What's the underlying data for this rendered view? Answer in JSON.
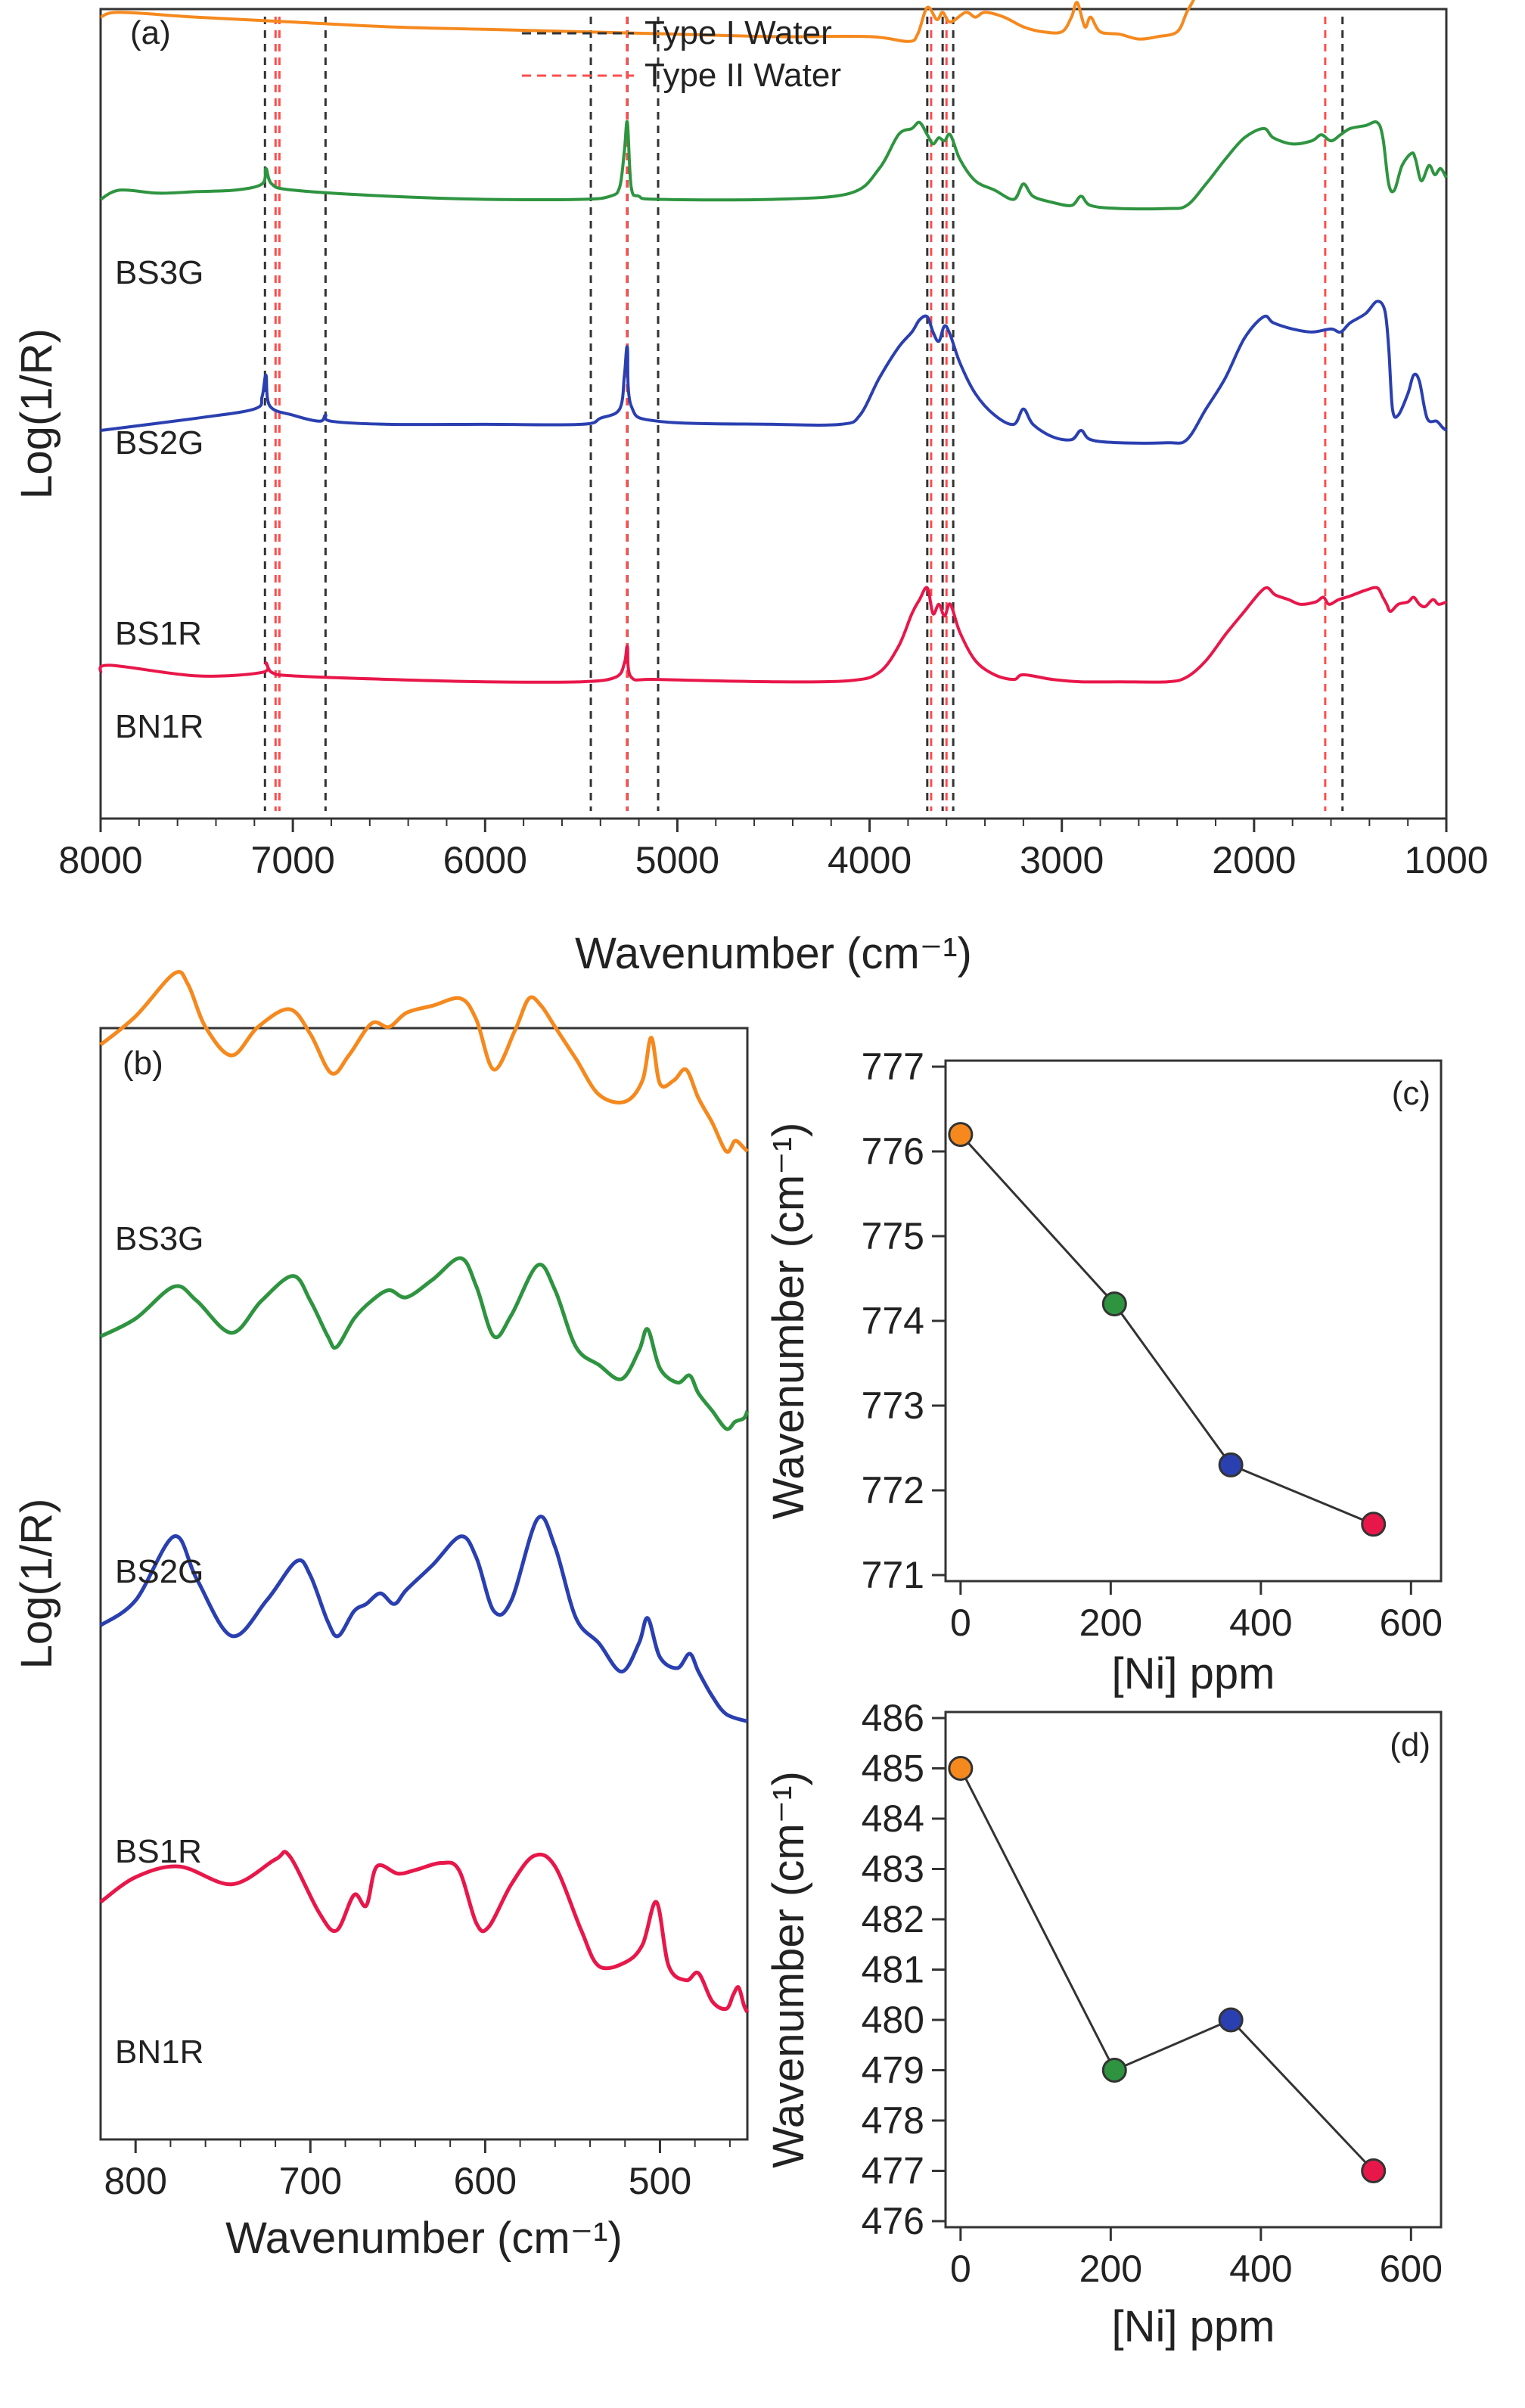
{
  "chart_data": [
    {
      "panel": "(a)",
      "type": "line",
      "xlabel": "Wavenumber (cm⁻¹)",
      "ylabel": "Log(1/R)",
      "xlim": [
        8000,
        1000
      ],
      "xticks": [
        8000,
        7000,
        6000,
        5000,
        4000,
        3000,
        2000,
        1000
      ],
      "grid": false,
      "legend": {
        "position": "top-center",
        "entries": [
          {
            "name": "Type I Water",
            "style": "dashed",
            "color": "#333333"
          },
          {
            "name": "Type II Water",
            "style": "dashed",
            "color": "#ff4d4d"
          }
        ]
      },
      "reference_lines": {
        "type_I": [
          7145,
          6830,
          5450,
          5260,
          5100,
          3700,
          3620,
          3565,
          1540
        ],
        "type_II": [
          7090,
          7070,
          5262,
          3680,
          3600,
          1630
        ]
      },
      "series": [
        {
          "name": "BS3G",
          "color": "#e8174a",
          "baseline": 0.86,
          "x": [
            8000,
            7950,
            7500,
            7160,
            7140,
            7110,
            7000,
            6500,
            6000,
            5500,
            5320,
            5275,
            5260,
            5240,
            5100,
            4500,
            4100,
            3950,
            3850,
            3780,
            3740,
            3700,
            3670,
            3640,
            3610,
            3580,
            3530,
            3450,
            3350,
            3250,
            3200,
            3050,
            2900,
            2700,
            2450,
            2350,
            2250,
            2150,
            2050,
            1970,
            1930,
            1890,
            1820,
            1760,
            1680,
            1640,
            1610,
            1560,
            1500,
            1420,
            1360,
            1330,
            1310,
            1290,
            1250,
            1200,
            1170,
            1140,
            1110,
            1070,
            1040,
            1000
          ],
          "y": [
            0.28,
            0.34,
            0.25,
            0.28,
            0.36,
            0.28,
            0.25,
            0.22,
            0.2,
            0.2,
            0.24,
            0.36,
            0.5,
            0.24,
            0.22,
            0.2,
            0.21,
            0.28,
            0.5,
            0.78,
            0.9,
            1.0,
            0.78,
            0.86,
            0.76,
            0.86,
            0.62,
            0.38,
            0.26,
            0.22,
            0.26,
            0.22,
            0.2,
            0.2,
            0.2,
            0.24,
            0.38,
            0.6,
            0.8,
            0.96,
            1.0,
            0.94,
            0.9,
            0.86,
            0.88,
            0.92,
            0.86,
            0.9,
            0.93,
            0.98,
            1.0,
            0.92,
            0.86,
            0.8,
            0.86,
            0.88,
            0.92,
            0.86,
            0.84,
            0.9,
            0.86,
            0.88
          ]
        },
        {
          "name": "BS2G",
          "color": "#2a3fb0",
          "baseline": 0.57,
          "x": [
            8000,
            7500,
            7200,
            7160,
            7140,
            7120,
            7000,
            6860,
            6830,
            6800,
            6500,
            6000,
            5500,
            5400,
            5300,
            5275,
            5260,
            5240,
            5100,
            4500,
            4150,
            4050,
            3950,
            3850,
            3780,
            3740,
            3700,
            3670,
            3640,
            3610,
            3580,
            3530,
            3450,
            3350,
            3250,
            3200,
            3150,
            3050,
            2950,
            2900,
            2850,
            2700,
            2450,
            2350,
            2250,
            2150,
            2050,
            1950,
            1900,
            1800,
            1700,
            1600,
            1550,
            1500,
            1420,
            1360,
            1320,
            1300,
            1280,
            1250,
            1200,
            1170,
            1140,
            1100,
            1050,
            1020,
            1000
          ],
          "y": [
            0.26,
            0.34,
            0.4,
            0.48,
            0.62,
            0.42,
            0.36,
            0.32,
            0.36,
            0.32,
            0.3,
            0.3,
            0.3,
            0.34,
            0.4,
            0.62,
            0.8,
            0.42,
            0.32,
            0.3,
            0.3,
            0.36,
            0.6,
            0.8,
            0.9,
            0.98,
            1.0,
            0.9,
            0.84,
            0.94,
            0.88,
            0.7,
            0.5,
            0.36,
            0.3,
            0.4,
            0.3,
            0.22,
            0.2,
            0.26,
            0.2,
            0.18,
            0.18,
            0.2,
            0.4,
            0.6,
            0.86,
            1.0,
            0.96,
            0.92,
            0.9,
            0.92,
            0.9,
            0.96,
            1.02,
            1.1,
            1.04,
            0.8,
            0.4,
            0.36,
            0.5,
            0.62,
            0.58,
            0.34,
            0.32,
            0.28,
            0.26
          ]
        },
        {
          "name": "BS1R",
          "color": "#2e9440",
          "baseline": 0.33,
          "x": [
            8000,
            7900,
            7700,
            7500,
            7300,
            7160,
            7140,
            7110,
            7000,
            6500,
            6000,
            5500,
            5350,
            5300,
            5275,
            5260,
            5240,
            5200,
            5100,
            4500,
            4100,
            3950,
            3850,
            3780,
            3740,
            3700,
            3670,
            3640,
            3610,
            3580,
            3530,
            3450,
            3350,
            3250,
            3200,
            3150,
            3050,
            2950,
            2900,
            2850,
            2700,
            2450,
            2350,
            2250,
            2150,
            2050,
            1950,
            1900,
            1800,
            1700,
            1650,
            1600,
            1550,
            1500,
            1420,
            1360,
            1330,
            1300,
            1270,
            1230,
            1180,
            1160,
            1130,
            1090,
            1060,
            1030,
            1000
          ],
          "y": [
            0.5,
            0.56,
            0.54,
            0.55,
            0.56,
            0.6,
            0.7,
            0.6,
            0.56,
            0.52,
            0.5,
            0.5,
            0.52,
            0.58,
            0.82,
            1.0,
            0.58,
            0.52,
            0.5,
            0.5,
            0.54,
            0.7,
            0.92,
            0.96,
            1.0,
            0.92,
            0.86,
            0.9,
            0.88,
            0.92,
            0.76,
            0.62,
            0.56,
            0.5,
            0.6,
            0.52,
            0.48,
            0.46,
            0.52,
            0.46,
            0.44,
            0.44,
            0.46,
            0.6,
            0.76,
            0.9,
            0.96,
            0.9,
            0.86,
            0.88,
            0.92,
            0.88,
            0.92,
            0.96,
            0.98,
            1.0,
            0.9,
            0.6,
            0.56,
            0.72,
            0.8,
            0.76,
            0.62,
            0.72,
            0.66,
            0.7,
            0.64
          ]
        },
        {
          "name": "BN1R",
          "color": "#f5891e",
          "baseline": 0.04,
          "x": [
            8000,
            7900,
            7500,
            7000,
            6500,
            6000,
            5500,
            5000,
            4500,
            4000,
            3800,
            3750,
            3700,
            3650,
            3620,
            3580,
            3500,
            3450,
            3400,
            3300,
            3200,
            3100,
            3000,
            2950,
            2920,
            2880,
            2850,
            2800,
            2700,
            2600,
            2500,
            2400,
            2350,
            2300,
            2250,
            2150,
            2050,
            1980,
            1940,
            1900,
            1850,
            1800,
            1750,
            1700,
            1650,
            1600,
            1550,
            1500,
            1450,
            1400,
            1360,
            1330,
            1300,
            1270,
            1240,
            1200,
            1170,
            1150,
            1120,
            1090,
            1060,
            1030,
            1000
          ],
          "y": [
            0.1,
            0.12,
            0.1,
            0.08,
            0.06,
            0.05,
            0.04,
            0.03,
            0.02,
            0.02,
            0.0,
            0.03,
            0.14,
            0.09,
            0.12,
            0.08,
            0.12,
            0.1,
            0.12,
            0.1,
            0.06,
            0.04,
            0.04,
            0.1,
            0.16,
            0.06,
            0.1,
            0.04,
            0.03,
            0.01,
            0.02,
            0.04,
            0.12,
            0.2,
            0.36,
            0.6,
            0.8,
            0.9,
            0.96,
            0.92,
            0.88,
            0.84,
            0.86,
            0.84,
            0.86,
            0.8,
            0.84,
            0.82,
            0.86,
            0.92,
            0.96,
            0.92,
            0.8,
            0.56,
            0.4,
            0.48,
            0.66,
            0.62,
            0.48,
            0.4,
            0.38,
            0.34,
            0.34
          ]
        }
      ]
    },
    {
      "panel": "(b)",
      "type": "line",
      "xlabel": "Wavenumber (cm⁻¹)",
      "ylabel": "Log(1/R)",
      "xlim": [
        820,
        450
      ],
      "xticks": [
        800,
        700,
        600,
        500
      ],
      "grid": false,
      "series": [
        {
          "name": "BS3G",
          "color": "#e8174a",
          "baseline": 0.86,
          "x": [
            820,
            800,
            775,
            745,
            720,
            712,
            695,
            685,
            675,
            668,
            662,
            650,
            640,
            625,
            615,
            605,
            598,
            585,
            572,
            560,
            545,
            535,
            520,
            510,
            502,
            495,
            485,
            478,
            470,
            462,
            458,
            455,
            452,
            450
          ],
          "y": [
            0.46,
            0.6,
            0.66,
            0.56,
            0.7,
            0.72,
            0.4,
            0.3,
            0.5,
            0.44,
            0.66,
            0.62,
            0.64,
            0.68,
            0.64,
            0.34,
            0.32,
            0.56,
            0.72,
            0.66,
            0.3,
            0.1,
            0.12,
            0.22,
            0.46,
            0.1,
            0.02,
            0.06,
            -0.1,
            -0.14,
            -0.06,
            -0.02,
            -0.12,
            -0.16
          ]
        },
        {
          "name": "BS2G",
          "color": "#2a3fb0",
          "baseline": 0.595,
          "x": [
            820,
            800,
            778,
            765,
            745,
            725,
            708,
            700,
            690,
            684,
            675,
            668,
            660,
            652,
            645,
            630,
            614,
            605,
            595,
            585,
            570,
            560,
            548,
            535,
            522,
            512,
            507,
            500,
            490,
            483,
            478,
            470,
            462,
            450
          ],
          "y": [
            0.36,
            0.5,
            0.86,
            0.62,
            0.3,
            0.5,
            0.72,
            0.64,
            0.38,
            0.3,
            0.44,
            0.48,
            0.54,
            0.48,
            0.56,
            0.7,
            0.86,
            0.74,
            0.44,
            0.5,
            0.96,
            0.8,
            0.4,
            0.26,
            0.1,
            0.26,
            0.4,
            0.18,
            0.12,
            0.2,
            0.1,
            -0.04,
            -0.14,
            -0.18
          ]
        },
        {
          "name": "BS1R",
          "color": "#2e9440",
          "baseline": 0.335,
          "x": [
            820,
            800,
            778,
            765,
            745,
            728,
            710,
            700,
            690,
            685,
            675,
            665,
            655,
            645,
            630,
            614,
            605,
            595,
            585,
            570,
            560,
            548,
            535,
            522,
            512,
            507,
            500,
            490,
            483,
            478,
            470,
            462,
            457,
            452,
            450
          ],
          "y": [
            0.36,
            0.46,
            0.64,
            0.56,
            0.38,
            0.56,
            0.7,
            0.56,
            0.36,
            0.3,
            0.46,
            0.56,
            0.62,
            0.58,
            0.68,
            0.8,
            0.64,
            0.36,
            0.48,
            0.76,
            0.62,
            0.3,
            0.2,
            0.12,
            0.28,
            0.4,
            0.18,
            0.1,
            0.14,
            0.04,
            -0.06,
            -0.16,
            -0.12,
            -0.1,
            -0.06
          ]
        },
        {
          "name": "BN1R",
          "color": "#f5891e",
          "baseline": 0.095,
          "x": [
            820,
            800,
            778,
            770,
            760,
            745,
            730,
            712,
            700,
            688,
            678,
            665,
            655,
            645,
            630,
            614,
            605,
            595,
            583,
            575,
            568,
            560,
            548,
            535,
            520,
            510,
            505,
            500,
            492,
            485,
            478,
            470,
            462,
            457,
            452,
            450
          ],
          "y": [
            0.5,
            0.66,
            0.9,
            0.84,
            0.6,
            0.44,
            0.6,
            0.7,
            0.56,
            0.34,
            0.44,
            0.62,
            0.6,
            0.68,
            0.72,
            0.76,
            0.64,
            0.36,
            0.58,
            0.76,
            0.72,
            0.6,
            0.42,
            0.22,
            0.18,
            0.3,
            0.54,
            0.28,
            0.3,
            0.36,
            0.2,
            0.06,
            -0.1,
            -0.04,
            -0.08,
            -0.1
          ]
        }
      ]
    },
    {
      "panel": "(c)",
      "type": "scatter",
      "xlabel": "[Ni] ppm",
      "ylabel": "Wavenumber (cm⁻¹)",
      "xlim": [
        -20,
        640
      ],
      "ylim": [
        771,
        777
      ],
      "xticks": [
        0,
        200,
        400,
        600
      ],
      "yticks": [
        771,
        772,
        773,
        774,
        775,
        776,
        777
      ],
      "grid": false,
      "points": [
        {
          "x": 0,
          "y": 776.2,
          "color": "#f5891e"
        },
        {
          "x": 205,
          "y": 774.2,
          "color": "#2e9440"
        },
        {
          "x": 360,
          "y": 772.3,
          "color": "#2a3fb0"
        },
        {
          "x": 550,
          "y": 771.6,
          "color": "#e8174a"
        }
      ]
    },
    {
      "panel": "(d)",
      "type": "scatter",
      "xlabel": "[Ni] ppm",
      "ylabel": "Wavenumber (cm⁻¹)",
      "xlim": [
        -20,
        640
      ],
      "ylim": [
        476,
        486
      ],
      "xticks": [
        0,
        200,
        400,
        600
      ],
      "yticks": [
        476,
        477,
        478,
        479,
        480,
        481,
        482,
        483,
        484,
        485,
        486
      ],
      "grid": false,
      "points": [
        {
          "x": 0,
          "y": 485,
          "color": "#f5891e"
        },
        {
          "x": 205,
          "y": 479,
          "color": "#2e9440"
        },
        {
          "x": 360,
          "y": 480,
          "color": "#2a3fb0"
        },
        {
          "x": 550,
          "y": 477,
          "color": "#e8174a"
        }
      ]
    }
  ]
}
